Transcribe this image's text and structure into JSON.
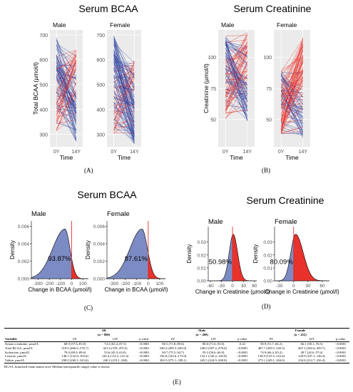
{
  "chart_data": [
    {
      "id": "A",
      "type": "line",
      "title": "Serum BCAA",
      "facets": [
        "Male",
        "Female"
      ],
      "x": [
        "0Y",
        "14Y"
      ],
      "xlabel": "Time",
      "ylabel": "Total BCAA (µmol/l)",
      "yticks": [
        300,
        400,
        500,
        600,
        700
      ],
      "ylim": [
        250,
        720
      ],
      "grid": true,
      "colors": {
        "decrease": "#2b3f9e",
        "increase": "#e8322b"
      },
      "facet_summary": {
        "Male": {
          "start_range": [
            310,
            690
          ],
          "end_range": [
            270,
            640
          ],
          "n_lines": 120
        },
        "Female": {
          "start_range": [
            300,
            700
          ],
          "end_range": [
            260,
            600
          ],
          "n_lines": 130
        }
      }
    },
    {
      "id": "B",
      "type": "line",
      "title": "Serum Creatinine",
      "facets": [
        "Male",
        "Female"
      ],
      "x": [
        "0Y",
        "14Y"
      ],
      "xlabel": "Time",
      "ylabel": "Creatinine (µmol/l)",
      "yticks": [
        50,
        75,
        100
      ],
      "ylim": [
        28,
        122
      ],
      "grid": true,
      "colors": {
        "decrease": "#2b3f9e",
        "increase": "#e8322b"
      },
      "facet_summary": {
        "Male": {
          "start_range": [
            50,
            118
          ],
          "end_range": [
            48,
            120
          ],
          "n_lines": 120
        },
        "Female": {
          "start_range": [
            38,
            90
          ],
          "end_range": [
            35,
            118
          ],
          "n_lines": 130
        }
      }
    },
    {
      "id": "C",
      "type": "area",
      "title": "Serum BCAA",
      "facets": [
        {
          "name": "Male",
          "percent_label": "93.87%",
          "xticks": [
            -300,
            -200,
            -100,
            0,
            100
          ],
          "xlim": [
            -360,
            150
          ],
          "peak": -60,
          "spread": 80,
          "skew_left": 110,
          "skew_right": 45
        },
        {
          "name": "Female",
          "percent_label": "87.61%",
          "xticks": [
            -300,
            -200,
            -100,
            0,
            100
          ],
          "xlim": [
            -360,
            150
          ],
          "peak": -55,
          "spread": 80,
          "skew_left": 105,
          "skew_right": 48
        }
      ],
      "xlabel": "Change in BCAA (µmol/l)",
      "ylabel": "Density",
      "yticks": [
        0,
        0.002,
        0.004,
        0.006
      ],
      "ytick_labels": [
        "0.000",
        "0.002",
        "0.004",
        "0.006"
      ],
      "ylim": [
        0,
        0.0066
      ],
      "peak_density": 0.0058,
      "colors": {
        "negative": "#7d8bc4",
        "positive": "#e8322b",
        "line": "#e8322b"
      }
    },
    {
      "id": "D",
      "type": "area",
      "title": "Serum Creatinine",
      "facets": [
        {
          "name": "Male",
          "percent_label": "50.98%",
          "xticks": [
            -60,
            -30,
            0,
            30,
            60
          ],
          "xlim": [
            -66,
            66
          ],
          "peak": 2,
          "spread": 10,
          "skew_left": 11,
          "skew_right": 12
        },
        {
          "name": "Female",
          "percent_label": "80.09%",
          "xticks": [
            -30,
            0,
            30,
            60
          ],
          "xlim": [
            -40,
            75
          ],
          "peak": 4,
          "spread": 12,
          "skew_left": 10,
          "skew_right": 16
        }
      ],
      "xlabel": "Change in Creatinine (µmol/l)",
      "ylabel": "Density",
      "yticks": [
        0,
        0.01,
        0.02,
        0.03
      ],
      "ytick_labels": [
        "0.00",
        "0.01",
        "0.02",
        "0.03"
      ],
      "ylim": [
        0,
        0.042
      ],
      "colors": {
        "negative": "#7d8bc4",
        "positive": "#e8322b",
        "line": "#e8322b"
      }
    },
    {
      "id": "E",
      "type": "table",
      "groups": [
        {
          "label": "All",
          "n": "(n = 860)"
        },
        {
          "label": "Male",
          "n": "(n = 408)"
        },
        {
          "label": "Female",
          "n": "(n = 452)"
        }
      ],
      "columns": [
        "Variable",
        "0Y",
        "14Y",
        "p value",
        "0Y",
        "14Y",
        "p value",
        "0Y",
        "14Y",
        "p value"
      ],
      "rows": [
        [
          "Serum creatinine, µmol/L",
          "68.9 (57.6–81.8)",
          "74.3 (63.4–87.5)",
          "<0.0001",
          "80.5 (71.8–89.6)",
          "80.6 (71.6–93.9)",
          "0.24",
          "58.9 (51.7–66.2)",
          "66.1 (58.1–76.5)",
          "<0.0001"
        ],
        [
          "Total BCAA, µmol/L",
          "518.0 (466.6–576.7)",
          "421.6 (379–470.5)",
          "<0.0001",
          "548.2 (499.3–603.0)",
          "438.0 (397.2–478.0)",
          "<0.0001",
          "487.7 (439.5–543.5)",
          "407.3 (363.6–459.7)",
          "<0.0001"
        ],
        [
          "Isoleucine, µmol/L",
          "79.0 (69.9–89.6)",
          "53.6 (45.3–63.0)",
          "<0.0001",
          "84.7 (75.5–94.7)",
          "59.3 (50.6–66.9)",
          "<0.0001",
          "74.9 (66.4–83.2)",
          "49.7 (42.6–57.6)",
          "<0.0001"
        ],
        [
          "Leucine, µmol/L",
          "148.1 (132.8–163.6)",
          "126.4 (112.5–141.4)",
          "<0.0001",
          "156.9 (143.6–173.0)",
          "132.1 (120.2–145.8)",
          "<0.0001",
          "138.9 (125.5–153.4)",
          "120.9 (107.1–136.4)",
          "<0.0001"
        ],
        [
          "Valine, µmol/L",
          "290.0 (260.2–323.6)",
          "240.2 (219.1–268)",
          "<0.0001",
          "304.5 (275.1–338.1)",
          "245.5 (224.9–268.8)",
          "<0.0001",
          "275.1 (249.1–304.0)",
          "234.8 (212.7–256.4)",
          "<0.0001"
        ]
      ],
      "footnote": "BCAA, branched-chain amino acid. Median (interquartile range) value is shown."
    }
  ],
  "panel_labels": {
    "A": "(A)",
    "B": "(B)",
    "C": "(C)",
    "D": "(D)",
    "E": "(E)"
  }
}
